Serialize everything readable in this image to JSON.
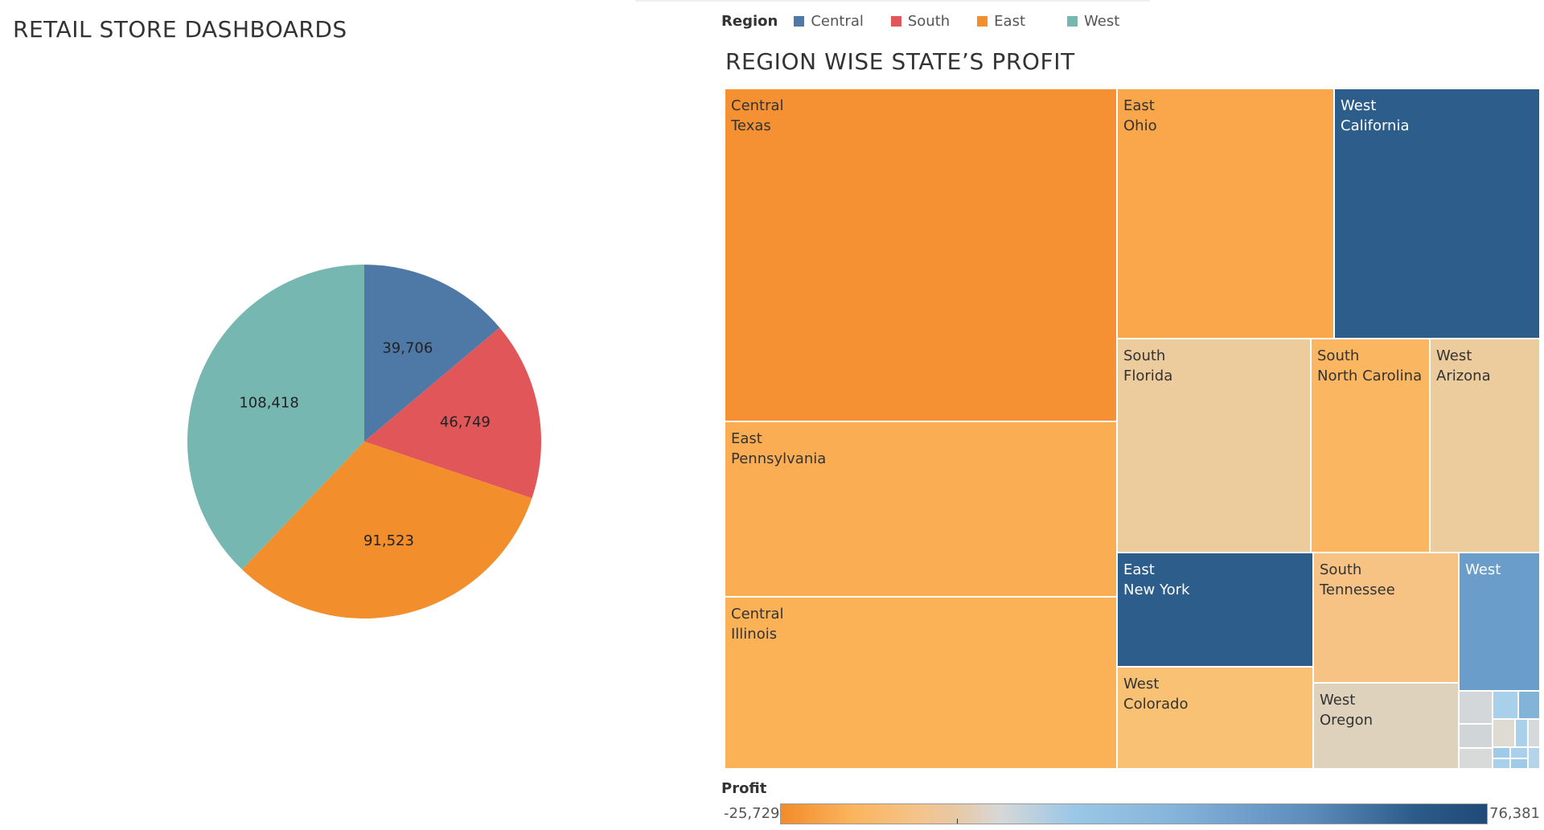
{
  "dashboard": {
    "title": "RETAIL STORE DASHBOARDS"
  },
  "legend": {
    "title": "Region",
    "items": [
      {
        "label": "Central",
        "color": "#4e79a7"
      },
      {
        "label": "South",
        "color": "#e15759"
      },
      {
        "label": "East",
        "color": "#f28e2b"
      },
      {
        "label": "West",
        "color": "#76b7b2"
      }
    ]
  },
  "chart_data": [
    {
      "type": "pie",
      "title": "",
      "start_angle_deg": 0,
      "direction": "clockwise",
      "slices": [
        {
          "label": "Central",
          "value": 39706,
          "display": "39,706",
          "color": "#4e79a7"
        },
        {
          "label": "South",
          "value": 46749,
          "display": "46,749",
          "color": "#e15759"
        },
        {
          "label": "East",
          "value": 91523,
          "display": "91,523",
          "color": "#f28e2b"
        },
        {
          "label": "West",
          "value": 108418,
          "display": "108,418",
          "color": "#76b7b2"
        }
      ]
    },
    {
      "type": "treemap",
      "title": "REGION WISE STATE’S PROFIT",
      "color_legend": {
        "title": "Profit",
        "min": "-25,729",
        "max": "76,381"
      },
      "tiles": [
        {
          "region": "Central",
          "state": "Texas",
          "color": "#f59133"
        },
        {
          "region": "East",
          "state": "Ohio",
          "color": "#f9a74a"
        },
        {
          "region": "West",
          "state": "California",
          "color": "#2c5d8b"
        },
        {
          "region": "East",
          "state": "Pennsylvania",
          "color": "#fbad54"
        },
        {
          "region": "Central",
          "state": "Illinois",
          "color": "#fbb257"
        },
        {
          "region": "South",
          "state": "Florida",
          "color": "#eccb9c"
        },
        {
          "region": "South",
          "state": "North Carolina",
          "color": "#fbb662"
        },
        {
          "region": "West",
          "state": "Arizona",
          "color": "#eccb9c"
        },
        {
          "region": "East",
          "state": "New York",
          "color": "#2c5d8b"
        },
        {
          "region": "South",
          "state": "Tennessee",
          "color": "#f6c385"
        },
        {
          "region": "West",
          "state": "",
          "color": "#6a9dc9"
        },
        {
          "region": "West",
          "state": "Colorado",
          "color": "#f9c174"
        },
        {
          "region": "West",
          "state": "Oregon",
          "color": "#dfd2bc"
        }
      ]
    }
  ]
}
